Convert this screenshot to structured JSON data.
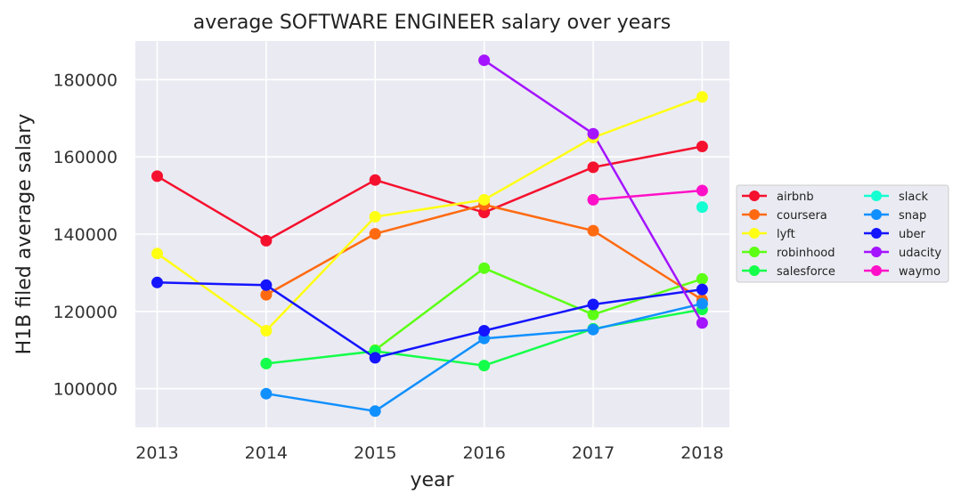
{
  "chart_data": {
    "type": "line",
    "title": "average SOFTWARE ENGINEER  salary over years",
    "xlabel": "year",
    "ylabel": "H1B filed average salary",
    "x": [
      2013,
      2014,
      2015,
      2016,
      2017,
      2018
    ],
    "xlim": [
      2012.8,
      2018.25
    ],
    "ylim": [
      90000,
      190000
    ],
    "yticks": [
      100000,
      120000,
      140000,
      160000,
      180000
    ],
    "grid": true,
    "legend_position": "right",
    "series": [
      {
        "name": "airbnb",
        "color": "#f5102e",
        "values": [
          155000,
          138300,
          154000,
          145600,
          157300,
          162700
        ]
      },
      {
        "name": "coursera",
        "color": "#ff6a10",
        "values": [
          null,
          124300,
          140100,
          147600,
          140900,
          123000
        ]
      },
      {
        "name": "lyft",
        "color": "#ffff14",
        "values": [
          135000,
          115000,
          144500,
          148900,
          165000,
          175500
        ]
      },
      {
        "name": "robinhood",
        "color": "#5cff14",
        "values": [
          null,
          null,
          110000,
          131200,
          119200,
          128400
        ]
      },
      {
        "name": "salesforce",
        "color": "#14ff4a",
        "values": [
          null,
          106500,
          109700,
          106000,
          115500,
          120500
        ]
      },
      {
        "name": "slack",
        "color": "#14ffd2",
        "values": [
          null,
          null,
          null,
          null,
          null,
          147000
        ]
      },
      {
        "name": "snap",
        "color": "#1090ff",
        "values": [
          null,
          98700,
          94200,
          113000,
          115300,
          122000
        ]
      },
      {
        "name": "uber",
        "color": "#1414ff",
        "values": [
          127500,
          126800,
          108000,
          115000,
          121800,
          125700
        ]
      },
      {
        "name": "udacity",
        "color": "#a414ff",
        "values": [
          null,
          null,
          null,
          185000,
          166000,
          117000
        ]
      },
      {
        "name": "waymo",
        "color": "#ff10c8",
        "values": [
          null,
          null,
          null,
          null,
          148900,
          151300
        ]
      }
    ]
  }
}
